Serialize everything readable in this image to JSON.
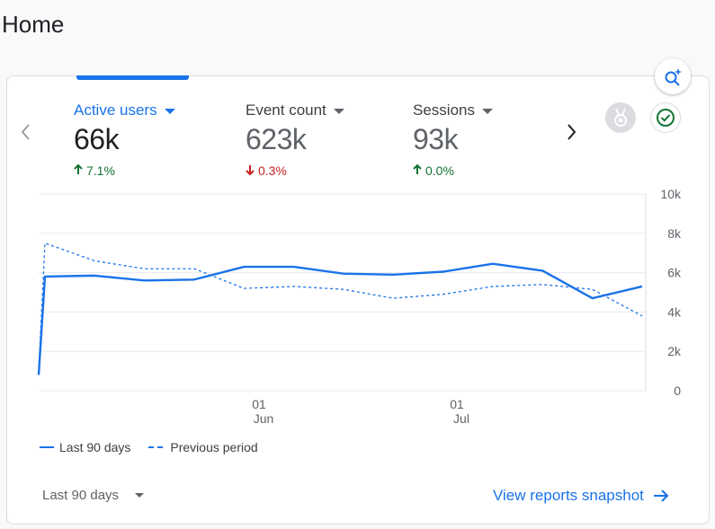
{
  "page": {
    "title": "Home"
  },
  "metrics": [
    {
      "label": "Active users",
      "value": "66k",
      "change": "7.1%",
      "direction": "up",
      "active": true
    },
    {
      "label": "Event count",
      "value": "623k",
      "change": "0.3%",
      "direction": "down",
      "active": false
    },
    {
      "label": "Sessions",
      "value": "93k",
      "change": "0.0%",
      "direction": "up",
      "active": false
    }
  ],
  "icons": {
    "prev": "chevron-left-icon",
    "next": "chevron-right-icon",
    "insights": "search-insights-icon",
    "badge": "award-badge-icon",
    "check": "check-circle-icon"
  },
  "colors": {
    "accent": "#1a73e8",
    "up": "#137333",
    "down": "#c5221f",
    "check": "#137333"
  },
  "chart_data": {
    "type": "line",
    "y_ticks": [
      "10k",
      "8k",
      "6k",
      "4k",
      "2k",
      "0"
    ],
    "ylim": [
      0,
      10000
    ],
    "x_ticks": [
      {
        "day": "01",
        "month": "Jun"
      },
      {
        "day": "01",
        "month": "Jul"
      }
    ],
    "series": [
      {
        "name": "Last 90 days",
        "style": "solid",
        "values": [
          800,
          5800,
          5850,
          5600,
          5650,
          6300,
          6300,
          5950,
          5900,
          6050,
          6450,
          6100,
          4700,
          5300
        ]
      },
      {
        "name": "Previous period",
        "style": "dashed",
        "values": [
          1000,
          7500,
          6600,
          6200,
          6200,
          5200,
          5300,
          5150,
          4700,
          4900,
          5300,
          5400,
          5150,
          3800
        ]
      }
    ]
  },
  "footer": {
    "range_label": "Last 90 days",
    "snapshot_link": "View reports snapshot"
  }
}
